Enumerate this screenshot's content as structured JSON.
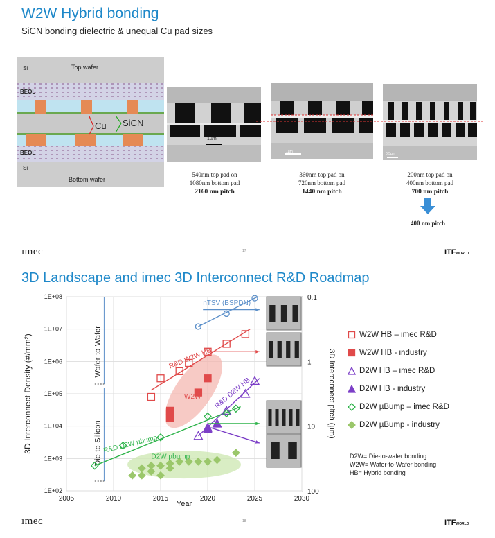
{
  "slide1": {
    "title": "W2W Hybrid bonding",
    "subtitle": "SiCN bonding dielectric & unequal Cu pad sizes",
    "schematic": {
      "top_si": "Si",
      "top_wafer": "Top wafer",
      "beol_top": "BEOL",
      "cu": "Cu",
      "sicn": "SiCN",
      "beol_bottom": "BEOL",
      "bottom_si": "Si",
      "bottom_wafer": "Bottom wafer"
    },
    "scale_bar_1": "1µm",
    "scale_bar_2": "1µm",
    "scale_bar_3": "0.5µm",
    "captions": [
      {
        "line1": "540nm top pad on",
        "line2": "1080nm bottom pad",
        "pitch": "2160 nm pitch"
      },
      {
        "line1": "360nm top pad on",
        "line2": "720nm bottom pad",
        "pitch": "1440 nm pitch"
      },
      {
        "line1": "200nm top pad on",
        "line2": "400nm bottom pad",
        "pitch": "700 nm pitch"
      }
    ],
    "next_pitch": "400 nm pitch",
    "footer_logo": "ımec",
    "page_num": "17",
    "itf": "ITF",
    "itf_small": "WORLD"
  },
  "slide2": {
    "title": "3D Landscape and imec 3D Interconnect R&D Roadmap",
    "footer_logo": "ımec",
    "page_num": "18",
    "itf": "ITF",
    "itf_small": "WORLD",
    "legend": [
      {
        "label": "W2W HB – imec R&D",
        "marker": "square-open",
        "color": "#e04a4a"
      },
      {
        "label": "W2W HB - industry",
        "marker": "square-filled",
        "color": "#e04a4a"
      },
      {
        "label": "D2W HB – imec R&D",
        "marker": "triangle-open",
        "color": "#7c3fc7"
      },
      {
        "label": "D2W HB - industry",
        "marker": "triangle-filled",
        "color": "#7c3fc7"
      },
      {
        "label": "D2W µBump – imec R&D",
        "marker": "diamond-open",
        "color": "#2db34a"
      },
      {
        "label": "D2W µBump - industry",
        "marker": "diamond-filled",
        "color": "#9bc76b"
      }
    ],
    "definitions": [
      "D2W= Die-to-wafer bonding",
      "W2W= Wafer-to-Wafer bonding",
      "HB= Hybrid bonding"
    ]
  },
  "chart_data": {
    "type": "scatter",
    "title": "",
    "xlabel": "Year",
    "ylabel": "3D Interconnect Density (#/mm²)",
    "y2label": "3D interconnect pitch (µm)",
    "xlim": [
      2005,
      2030
    ],
    "x_ticks": [
      "2005",
      "2010",
      "2015",
      "2020",
      "2025",
      "2030"
    ],
    "y_scale": "log",
    "ylim": [
      100,
      100000000
    ],
    "y_ticks": [
      "1E+02",
      "1E+03",
      "1E+04",
      "1E+05",
      "1E+06",
      "1E+07",
      "1E+08"
    ],
    "y2_ticks": [
      {
        "label": "0.1",
        "density": 100000000
      },
      {
        "label": "1",
        "density": 1000000
      },
      {
        "label": "10",
        "density": 10000
      },
      {
        "label": "100",
        "density": 100
      }
    ],
    "region_labels": [
      "Wafer-to-Wafer",
      "Die-to-Silicon"
    ],
    "series": [
      {
        "name": "nTSV (BSPDN)",
        "marker": "circle-open",
        "color": "#5b8fc9",
        "x": [
          2019,
          2022,
          2025
        ],
        "y": [
          12000000,
          30000000,
          90000000
        ]
      },
      {
        "name": "W2W HB – imec R&D",
        "marker": "square-open",
        "color": "#e04a4a",
        "x": [
          2014,
          2015,
          2017,
          2018,
          2020,
          2022,
          2024
        ],
        "y": [
          80000,
          300000,
          500000,
          900000,
          2000000,
          3500000,
          7000000
        ]
      },
      {
        "name": "W2W HB - industry",
        "marker": "square-filled",
        "color": "#e04a4a",
        "x": [
          2016,
          2016,
          2019,
          2020
        ],
        "y": [
          18000,
          30000,
          110000,
          300000
        ]
      },
      {
        "name": "D2W HB – imec R&D",
        "marker": "triangle-open",
        "color": "#7c3fc7",
        "x": [
          2019,
          2020,
          2022,
          2024,
          2025
        ],
        "y": [
          5000,
          9000,
          30000,
          100000,
          250000
        ]
      },
      {
        "name": "D2W HB - industry",
        "marker": "triangle-filled",
        "color": "#7c3fc7",
        "x": [
          2020,
          2021
        ],
        "y": [
          8000,
          12000
        ]
      },
      {
        "name": "D2W µBump – imec R&D",
        "marker": "diamond-open",
        "color": "#2db34a",
        "x": [
          2008,
          2011,
          2015,
          2020,
          2022,
          2023
        ],
        "y": [
          600,
          2500,
          4500,
          20000,
          25000,
          35000
        ]
      },
      {
        "name": "D2W µBump - industry",
        "marker": "diamond-filled",
        "color": "#9bc76b",
        "x": [
          2012,
          2013,
          2013,
          2014,
          2014,
          2015,
          2015,
          2016,
          2016,
          2017,
          2018,
          2019,
          2020,
          2021,
          2023
        ],
        "y": [
          300,
          500,
          300,
          600,
          400,
          600,
          300,
          700,
          500,
          800,
          800,
          800,
          800,
          900,
          1500
        ]
      }
    ],
    "trend_labels": [
      {
        "text": "nTSV (BSPDN)",
        "color": "#5b8fc9"
      },
      {
        "text": "R&D W2W HB",
        "color": "#e04a4a"
      },
      {
        "text": "W2W",
        "color": "#e04a4a"
      },
      {
        "text": "R&D D2W HB",
        "color": "#7c3fc7"
      },
      {
        "text": "R&D D2W µbump",
        "color": "#2db34a"
      },
      {
        "text": "D2W µbump",
        "color": "#2db34a"
      }
    ]
  }
}
